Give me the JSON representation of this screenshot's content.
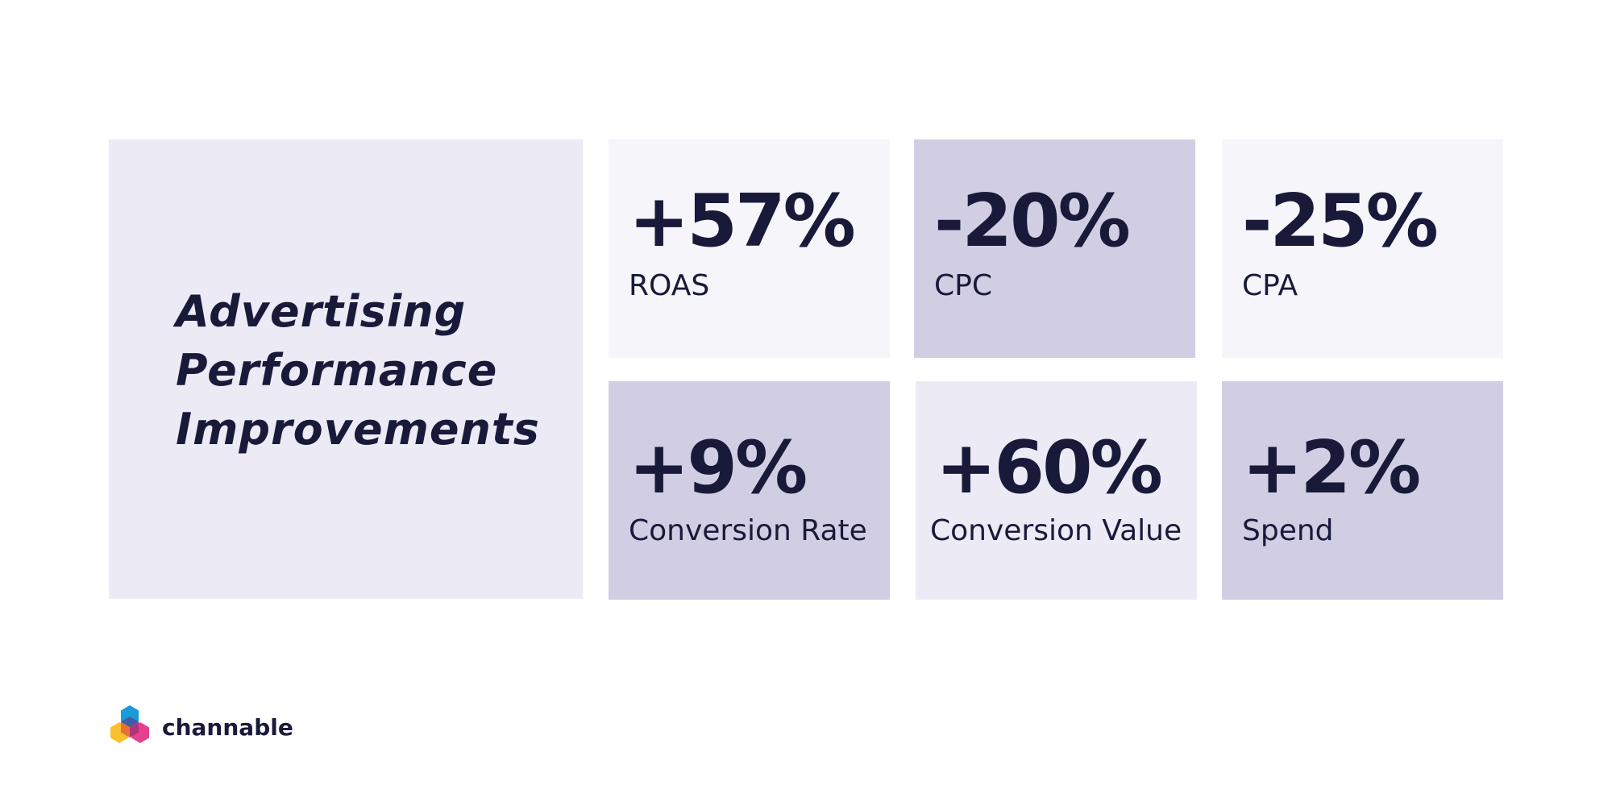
{
  "title": {
    "lines": [
      "Advertising",
      "Performance",
      "Improvements"
    ]
  },
  "metrics": [
    {
      "value": "+57%",
      "label": "ROAS"
    },
    {
      "value": "-20%",
      "label": "CPC"
    },
    {
      "value": "-25%",
      "label": "CPA"
    },
    {
      "value": "+9%",
      "label": "Conversion Rate"
    },
    {
      "value": "+60%",
      "label": "Conversion Value"
    },
    {
      "value": "+2%",
      "label": "Spend"
    }
  ],
  "brand": {
    "name": "channable",
    "logo_icon": "hexagon-cubes-logo-icon"
  },
  "colors": {
    "text": "#191a3a",
    "tile_light": "#f5f5fa",
    "tile_mid": "#ecebf5",
    "tile_dark": "#d1cee4",
    "logo_blue": "#1a9ad9",
    "logo_yellow": "#fbc02d",
    "logo_pink": "#e4418f",
    "logo_orange": "#f0742b"
  }
}
